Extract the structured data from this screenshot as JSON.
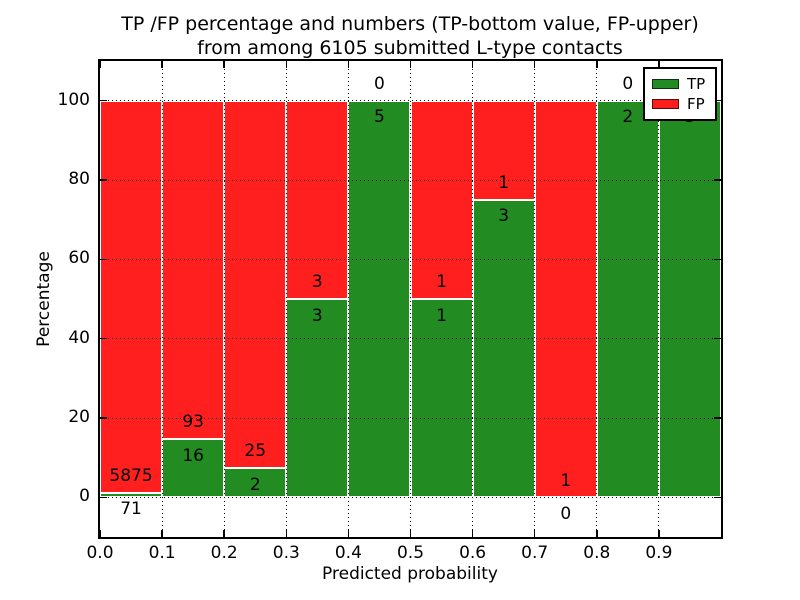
{
  "figure": {
    "title_line1": "TP /FP percentage and numbers (TP-bottom value, FP-upper)",
    "title_line2": "from among 6105 submitted L-type contacts"
  },
  "chart_data": {
    "type": "bar",
    "stacked": true,
    "title": "TP /FP percentage and numbers (TP-bottom value, FP-upper) from among 6105 submitted L-type contacts",
    "xlabel": "Predicted probability",
    "ylabel": "Percentage",
    "xlim": [
      0.0,
      1.0
    ],
    "ylim": [
      -10,
      110
    ],
    "grid": "dotted black on all major ticks",
    "legend_position": "upper right",
    "note": "Each 0.1-wide bin is a 100%-stacked bar: green TP share on bottom, red FP share on top; numeric labels are raw counts (TP count below the TP/FP boundary, FP count above it)",
    "total_contacts": 6105,
    "bins": [
      {
        "x0": 0.0,
        "x1": 0.1,
        "tp": 71,
        "fp": 5875
      },
      {
        "x0": 0.1,
        "x1": 0.2,
        "tp": 16,
        "fp": 93
      },
      {
        "x0": 0.2,
        "x1": 0.3,
        "tp": 2,
        "fp": 25
      },
      {
        "x0": 0.3,
        "x1": 0.4,
        "tp": 3,
        "fp": 3
      },
      {
        "x0": 0.4,
        "x1": 0.5,
        "tp": 5,
        "fp": 0
      },
      {
        "x0": 0.5,
        "x1": 0.6,
        "tp": 1,
        "fp": 1
      },
      {
        "x0": 0.6,
        "x1": 0.7,
        "tp": 3,
        "fp": 1
      },
      {
        "x0": 0.7,
        "x1": 0.8,
        "tp": 0,
        "fp": 1
      },
      {
        "x0": 0.8,
        "x1": 0.9,
        "tp": 2,
        "fp": 0
      },
      {
        "x0": 0.9,
        "x1": 1.0,
        "tp": 3,
        "fp": 0
      }
    ],
    "xticks": [
      "0.0",
      "0.1",
      "0.2",
      "0.3",
      "0.4",
      "0.5",
      "0.6",
      "0.7",
      "0.8",
      "0.9"
    ],
    "yticks": [
      0,
      20,
      40,
      60,
      80,
      100
    ],
    "legend": [
      {
        "label": "TP",
        "color": "#228b22"
      },
      {
        "label": "FP",
        "color": "#ff1f1f"
      }
    ],
    "colors": {
      "tp": "#228b22",
      "fp": "#ff1f1f",
      "grid": "#000000",
      "background": "#ffffff"
    }
  }
}
